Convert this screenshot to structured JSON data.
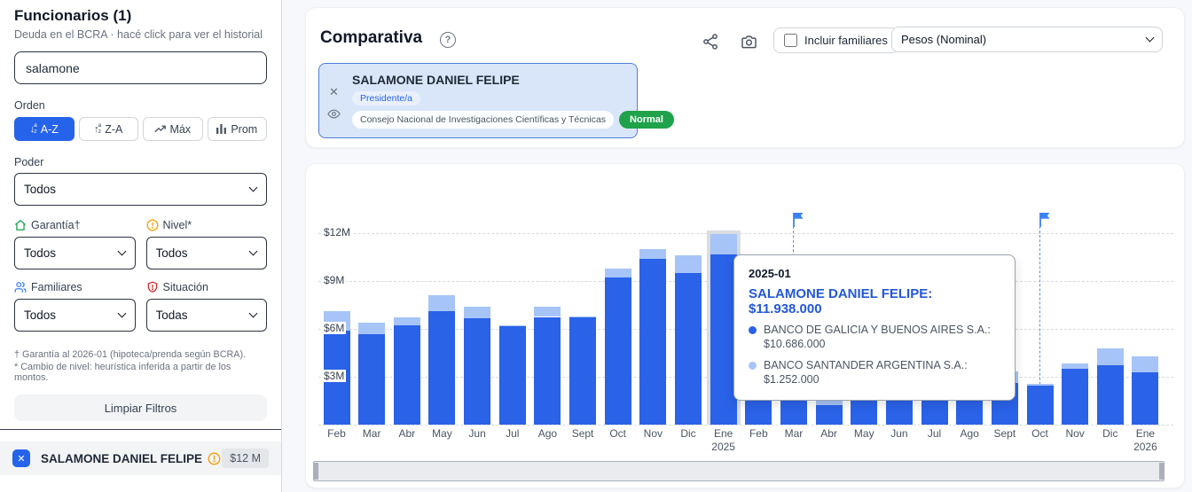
{
  "sidebar": {
    "title": "Funcionarios (1)",
    "subtitle": "Deuda en el BCRA · hacé click para ver el historial",
    "search_value": "salamone",
    "orden_label": "Orden",
    "sort_buttons": [
      {
        "label": "A-Z",
        "icon": "sort-az-icon"
      },
      {
        "label": "Z-A",
        "icon": "sort-za-icon"
      },
      {
        "label": "Máx",
        "icon": "trending-up-icon"
      },
      {
        "label": "Prom",
        "icon": "bar-chart-icon"
      }
    ],
    "active_sort": "A-Z",
    "poder_label": "Poder",
    "poder_value": "Todos",
    "filters": [
      {
        "label": "Garantía†",
        "icon": "house-icon",
        "value": "Todos"
      },
      {
        "label": "Nivel*",
        "icon": "alert-circle-icon",
        "value": "Todos"
      },
      {
        "label": "Familiares",
        "icon": "users-icon",
        "value": "Todos"
      },
      {
        "label": "Situación",
        "icon": "shield-alert-icon",
        "value": "Todas"
      }
    ],
    "footnotes": [
      "† Garantía al 2026-01 (hipoteca/prenda según BCRA).",
      "* Cambio de nivel: heurística inferida a partir de los montos.",
      "Limpiar Filtros"
    ],
    "clear_button": "Limpiar Filtros",
    "selected_person": {
      "name": "SALAMONE DANIEL FELIPE",
      "amount": "$12 M"
    }
  },
  "header": {
    "title": "Comparativa",
    "help_glyph": "?",
    "include_family_label": "Incluir familiares",
    "currency_value": "Pesos (Nominal)",
    "person_card": {
      "name": "SALAMONE DANIEL FELIPE",
      "role": "Presidente/a",
      "organization": "Consejo Nacional de Investigaciones Científicas y Técnicas",
      "status": "Normal",
      "close_glyph": "✕"
    }
  },
  "tooltip": {
    "date": "2025-01",
    "headline": "SALAMONE DANIEL FELIPE: $11.938.000",
    "items": [
      {
        "text": "BANCO DE GALICIA Y BUENOS AIRES S.A.: $10.686.000",
        "color": "#2a62e8"
      },
      {
        "text": "BANCO SANTANDER ARGENTINA S.A.: $1.252.000",
        "color": "#a6c4f7"
      }
    ]
  },
  "chart_data": {
    "type": "bar",
    "stacked": true,
    "unit": "ARS millions",
    "categories": [
      {
        "m": "Feb"
      },
      {
        "m": "Mar"
      },
      {
        "m": "Abr"
      },
      {
        "m": "May"
      },
      {
        "m": "Jun"
      },
      {
        "m": "Jul"
      },
      {
        "m": "Ago"
      },
      {
        "m": "Sept"
      },
      {
        "m": "Oct"
      },
      {
        "m": "Nov"
      },
      {
        "m": "Dic"
      },
      {
        "m": "Ene",
        "y": "2025"
      },
      {
        "m": "Feb"
      },
      {
        "m": "Mar"
      },
      {
        "m": "Abr"
      },
      {
        "m": "May"
      },
      {
        "m": "Jun"
      },
      {
        "m": "Jul"
      },
      {
        "m": "Ago"
      },
      {
        "m": "Sept"
      },
      {
        "m": "Oct"
      },
      {
        "m": "Nov"
      },
      {
        "m": "Dic"
      },
      {
        "m": "Ene",
        "y": "2026"
      }
    ],
    "series": [
      {
        "name": "BANCO DE GALICIA Y BUENOS AIRES S.A.",
        "color": "#2a62e8",
        "values": [
          5.9,
          5.65,
          6.2,
          7.1,
          6.65,
          6.15,
          6.75,
          6.7,
          9.2,
          10.4,
          9.5,
          10.686,
          4.8,
          4.4,
          1.2,
          1.85,
          2.65,
          2.05,
          2.3,
          2.6,
          2.45,
          3.5,
          3.7,
          3.3
        ]
      },
      {
        "name": "BANCO SANTANDER ARGENTINA S.A.",
        "color": "#a6c4f7",
        "values": [
          1.2,
          0.75,
          0.55,
          1.0,
          0.75,
          0.1,
          0.65,
          0.1,
          0.6,
          0.6,
          1.1,
          1.252,
          0.7,
          0.6,
          0.8,
          1.1,
          0.65,
          1.15,
          0.9,
          0.75,
          0.1,
          0.35,
          1.1,
          1.0
        ]
      }
    ],
    "y_labels": [
      "$3M",
      "$6M",
      "$9M",
      "$12M"
    ],
    "ylim": [
      0,
      13.1
    ],
    "grid": true,
    "highlighted_index": 11,
    "flags": [
      {
        "index": 13,
        "line_to": 115
      },
      {
        "index": 20,
        "line_to": 294
      }
    ]
  },
  "colors": {
    "accent_blue": "#2563eb",
    "flag_blue": "#3b82f6",
    "status_green": "#1fa24a"
  }
}
